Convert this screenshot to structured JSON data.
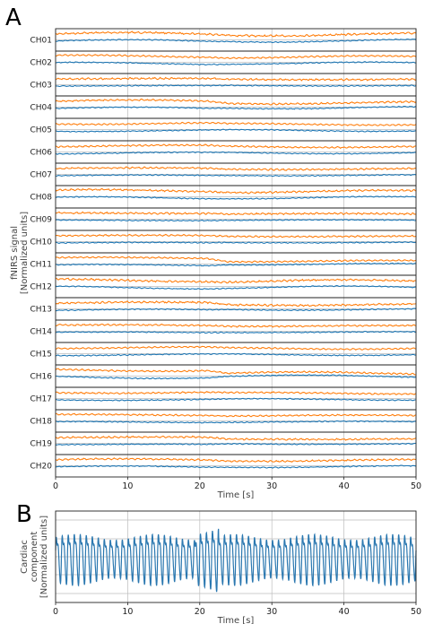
{
  "panels": {
    "a_letter": "A",
    "b_letter": "B"
  },
  "colors": {
    "oxy": "#ff7f0e",
    "deoxy": "#1f77b4",
    "cardiac": "#2b78b0"
  },
  "chart_data": [
    {
      "type": "line",
      "panel": "A",
      "channels": [
        "CH01",
        "CH02",
        "CH03",
        "CH04",
        "CH05",
        "CH06",
        "CH07",
        "CH08",
        "CH09",
        "CH10",
        "CH11",
        "CH12",
        "CH13",
        "CH14",
        "CH15",
        "CH16",
        "CH17",
        "CH18",
        "CH19",
        "CH20"
      ],
      "xlabel": "Time [s]",
      "ylabel": "fNIRS signal\n[Normalized units]",
      "xlim": [
        0,
        50
      ],
      "xticks": [
        0,
        10,
        20,
        30,
        40,
        50
      ],
      "grid": true,
      "series": [
        {
          "color": "#ff7f0e"
        },
        {
          "color": "#1f77b4"
        }
      ]
    },
    {
      "type": "line",
      "panel": "B",
      "xlabel": "Time [s]",
      "ylabel": "Cardiac\ncomponent\n[Normalized units]",
      "xlim": [
        0,
        50
      ],
      "xticks": [
        0,
        10,
        20,
        30,
        40,
        50
      ],
      "grid": true,
      "heart_rate_hz": 1.2,
      "series": [
        {
          "color": "#2b78b0"
        }
      ]
    }
  ]
}
